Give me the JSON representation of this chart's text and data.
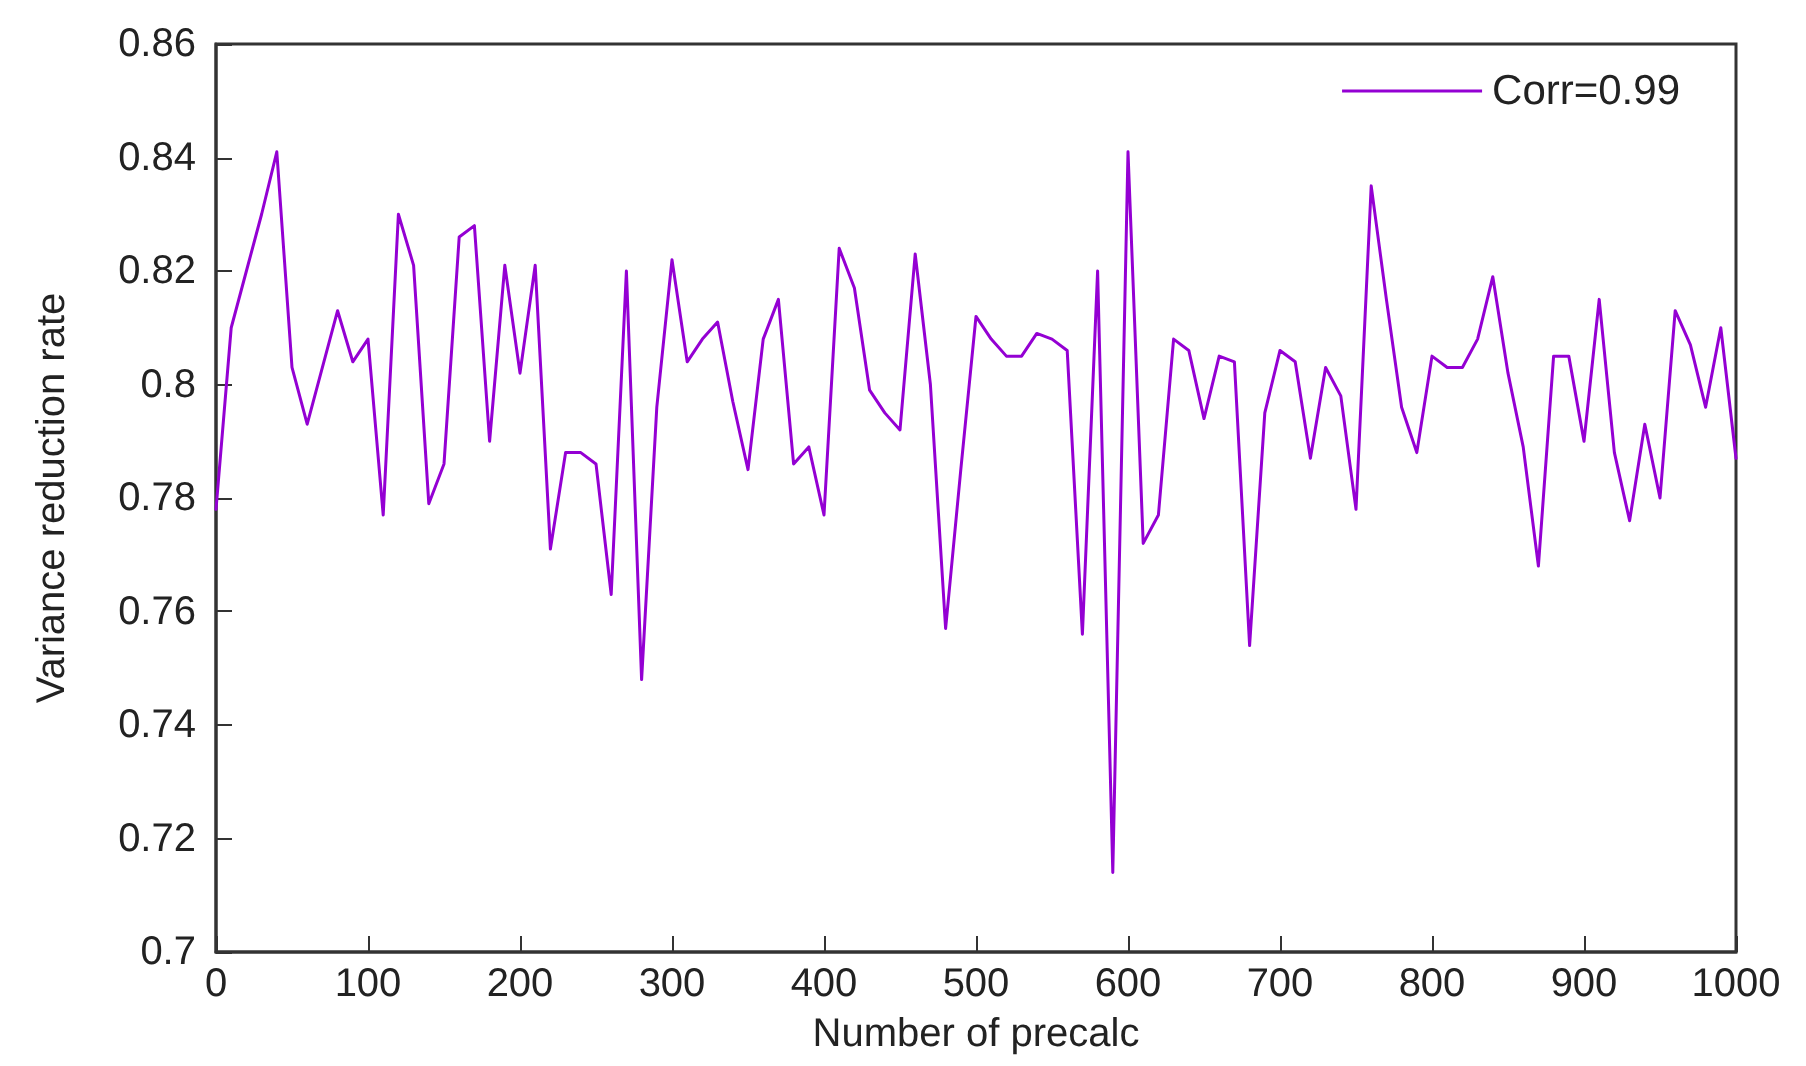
{
  "chart_data": {
    "type": "line",
    "xlabel": "Number of precalc",
    "ylabel": "Variance reduction rate",
    "x": [
      0,
      10,
      20,
      30,
      40,
      50,
      60,
      70,
      80,
      90,
      100,
      110,
      120,
      130,
      140,
      150,
      160,
      170,
      180,
      190,
      200,
      210,
      220,
      230,
      240,
      250,
      260,
      270,
      280,
      290,
      300,
      310,
      320,
      330,
      340,
      350,
      360,
      370,
      380,
      390,
      400,
      410,
      420,
      430,
      440,
      450,
      460,
      470,
      480,
      490,
      500,
      510,
      520,
      530,
      540,
      550,
      560,
      570,
      580,
      590,
      600,
      610,
      620,
      630,
      640,
      650,
      660,
      670,
      680,
      690,
      700,
      710,
      720,
      730,
      740,
      750,
      760,
      770,
      780,
      790,
      800,
      810,
      820,
      830,
      840,
      850,
      860,
      870,
      880,
      890,
      900,
      910,
      920,
      930,
      940,
      950,
      960,
      970,
      980,
      990,
      1000
    ],
    "series": [
      {
        "name": "Corr=0.99",
        "color": "#9400d3",
        "values": [
          0.778,
          0.81,
          0.82,
          0.83,
          0.841,
          0.803,
          0.793,
          0.803,
          0.813,
          0.804,
          0.808,
          0.777,
          0.83,
          0.821,
          0.779,
          0.786,
          0.826,
          0.828,
          0.79,
          0.821,
          0.802,
          0.821,
          0.771,
          0.788,
          0.788,
          0.786,
          0.763,
          0.82,
          0.748,
          0.796,
          0.822,
          0.804,
          0.808,
          0.811,
          0.797,
          0.785,
          0.808,
          0.815,
          0.786,
          0.789,
          0.777,
          0.824,
          0.817,
          0.799,
          0.795,
          0.792,
          0.823,
          0.8,
          0.757,
          0.785,
          0.812,
          0.808,
          0.805,
          0.805,
          0.809,
          0.808,
          0.806,
          0.756,
          0.82,
          0.714,
          0.841,
          0.772,
          0.777,
          0.808,
          0.806,
          0.794,
          0.805,
          0.804,
          0.754,
          0.795,
          0.806,
          0.804,
          0.787,
          0.803,
          0.798,
          0.778,
          0.835,
          0.815,
          0.796,
          0.788,
          0.805,
          0.803,
          0.803,
          0.808,
          0.819,
          0.802,
          0.789,
          0.768,
          0.805,
          0.805,
          0.79,
          0.815,
          0.788,
          0.776,
          0.793,
          0.78,
          0.813,
          0.807,
          0.796,
          0.81,
          0.787
        ]
      }
    ],
    "xlim": [
      0,
      1000
    ],
    "xticks": [
      0,
      100,
      200,
      300,
      400,
      500,
      600,
      700,
      800,
      900,
      1000
    ],
    "ylim": [
      0.7,
      0.86
    ],
    "yticks": [
      0.7,
      0.72,
      0.74,
      0.76,
      0.78,
      0.8,
      0.82,
      0.84,
      0.86
    ],
    "legend": "top right",
    "marker": "none",
    "line_style": "solid"
  }
}
